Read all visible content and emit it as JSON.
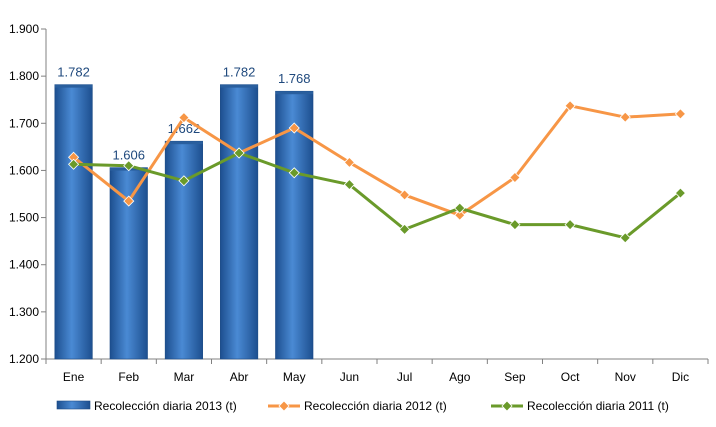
{
  "chart_data": {
    "type": "bar+line",
    "title": "",
    "xlabel": "",
    "ylabel": "",
    "ylim": [
      1200,
      1900
    ],
    "yticks": [
      1200,
      1300,
      1400,
      1500,
      1600,
      1700,
      1800,
      1900
    ],
    "ytick_labels": [
      "1.200",
      "1.300",
      "1.400",
      "1.500",
      "1.600",
      "1.700",
      "1.800",
      "1.900"
    ],
    "categories": [
      "Ene",
      "Feb",
      "Mar",
      "Abr",
      "May",
      "Jun",
      "Jul",
      "Ago",
      "Sep",
      "Oct",
      "Nov",
      "Dic"
    ],
    "grid": false,
    "legend_position": "bottom",
    "series": [
      {
        "name": "Recolección diaria 2013 (t)",
        "type": "bar",
        "color": "#2e6db4",
        "values": [
          1782,
          1606,
          1662,
          1782,
          1768,
          null,
          null,
          null,
          null,
          null,
          null,
          null
        ],
        "data_labels": [
          "1.782",
          "1.606",
          "1.662",
          "1.782",
          "1.768"
        ]
      },
      {
        "name": "Recolección diaria  2012 (t)",
        "type": "line",
        "color": "#f79646",
        "values": [
          1628,
          1535,
          1712,
          1637,
          1690,
          1617,
          1548,
          1505,
          1585,
          1737,
          1713,
          1720
        ]
      },
      {
        "name": "Recolección diaria  2011 (t)",
        "type": "line",
        "color": "#6a9a2a",
        "values": [
          1613,
          1610,
          1578,
          1637,
          1595,
          1570,
          1475,
          1520,
          1485,
          1485,
          1457,
          1552
        ]
      }
    ]
  }
}
